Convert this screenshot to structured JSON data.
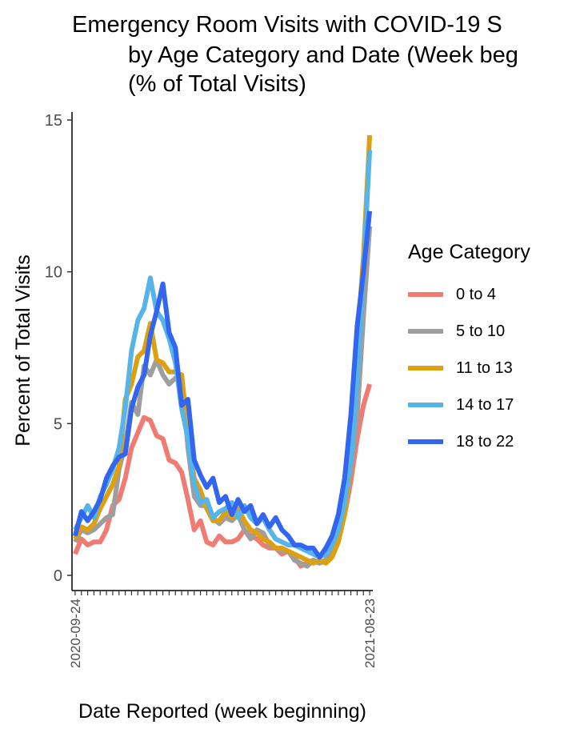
{
  "chart_data": {
    "type": "line",
    "title_lines": [
      "Emergency Room Visits with COVID-19 S",
      "by Age Category and Date (Week beg",
      "(% of Total Visits)"
    ],
    "xlabel": "Date Reported (week beginning)",
    "ylabel": "Percent of Total Visits",
    "ylim": [
      0,
      15
    ],
    "y_ticks": [
      0,
      5,
      10,
      15
    ],
    "x_first_label": "2020-09-24",
    "x_last_label": "2021-08-23",
    "legend_title": "Age Category",
    "legend_placement": "right",
    "grid": false,
    "x": [
      1,
      2,
      3,
      4,
      5,
      6,
      7,
      8,
      9,
      10,
      11,
      12,
      13,
      14,
      15,
      16,
      17,
      18,
      19,
      20,
      21,
      22,
      23,
      24,
      25,
      26,
      27,
      28,
      29,
      30,
      31,
      32,
      33,
      34,
      35,
      36,
      37,
      38,
      39,
      40,
      41,
      42,
      43,
      44,
      45,
      46,
      47,
      48
    ],
    "series": [
      {
        "name": "0 to 4",
        "color": "#F07B72",
        "values": [
          0.7,
          1.2,
          1.0,
          1.1,
          1.1,
          1.5,
          2.3,
          2.5,
          3.2,
          4.2,
          4.7,
          5.2,
          5.1,
          4.6,
          4.5,
          3.8,
          3.7,
          3.4,
          2.5,
          1.5,
          1.8,
          1.1,
          1.0,
          1.3,
          1.1,
          1.1,
          1.2,
          1.5,
          1.3,
          1.2,
          1.0,
          0.9,
          0.9,
          0.7,
          0.8,
          0.6,
          0.3,
          0.4,
          0.5,
          0.4,
          0.5,
          0.7,
          1.3,
          2.0,
          3.1,
          4.5,
          5.6,
          6.3
        ]
      },
      {
        "name": "5 to 10",
        "color": "#9E9E9E",
        "values": [
          1.1,
          1.5,
          1.4,
          1.5,
          1.7,
          1.9,
          2.0,
          3.5,
          4.3,
          5.7,
          5.3,
          6.9,
          6.6,
          7.1,
          6.6,
          6.3,
          6.5,
          6.6,
          4.2,
          2.6,
          2.3,
          2.3,
          1.9,
          1.7,
          1.9,
          1.8,
          2.0,
          1.5,
          1.2,
          1.5,
          1.4,
          1.0,
          0.9,
          0.8,
          0.8,
          0.5,
          0.4,
          0.3,
          0.5,
          0.4,
          0.5,
          1.0,
          1.4,
          2.2,
          3.5,
          5.2,
          8.5,
          11.5
        ]
      },
      {
        "name": "11 to 13",
        "color": "#DCA010",
        "values": [
          1.2,
          1.6,
          1.5,
          1.7,
          2.2,
          2.6,
          3.0,
          3.6,
          5.8,
          6.3,
          7.2,
          7.4,
          8.3,
          7.1,
          7.0,
          6.7,
          6.7,
          6.6,
          4.7,
          3.2,
          2.8,
          2.2,
          1.8,
          1.8,
          2.1,
          1.9,
          2.2,
          1.8,
          1.5,
          1.4,
          1.2,
          1.1,
          0.9,
          0.9,
          0.8,
          0.7,
          0.6,
          0.5,
          0.4,
          0.5,
          0.4,
          0.6,
          1.1,
          2.0,
          3.8,
          7.6,
          10.5,
          14.5
        ]
      },
      {
        "name": "14 to 17",
        "color": "#56B4E9",
        "values": [
          1.5,
          1.9,
          2.3,
          1.9,
          2.6,
          3.0,
          3.5,
          4.2,
          5.5,
          7.4,
          8.4,
          8.8,
          9.8,
          8.7,
          8.4,
          7.8,
          7.0,
          5.5,
          4.5,
          3.0,
          2.4,
          2.5,
          1.9,
          2.1,
          2.2,
          2.4,
          1.9,
          2.3,
          1.9,
          1.7,
          1.9,
          1.5,
          1.2,
          1.1,
          1.0,
          1.0,
          0.9,
          0.8,
          0.7,
          0.6,
          0.7,
          1.0,
          1.5,
          2.4,
          3.8,
          6.5,
          10.0,
          14.0
        ]
      },
      {
        "name": "18 to 22",
        "color": "#3366EE",
        "values": [
          1.3,
          2.1,
          1.8,
          2.1,
          2.5,
          3.2,
          3.6,
          3.9,
          4.0,
          5.5,
          6.2,
          6.6,
          7.9,
          8.7,
          9.6,
          8.0,
          7.5,
          5.6,
          5.8,
          3.8,
          3.3,
          2.9,
          3.2,
          2.4,
          2.6,
          2.0,
          2.5,
          2.1,
          2.3,
          1.7,
          2.0,
          1.6,
          1.9,
          1.5,
          1.3,
          1.0,
          1.0,
          0.9,
          0.9,
          0.6,
          0.9,
          1.3,
          2.0,
          3.2,
          5.3,
          8.2,
          10.0,
          12.0
        ]
      }
    ]
  }
}
